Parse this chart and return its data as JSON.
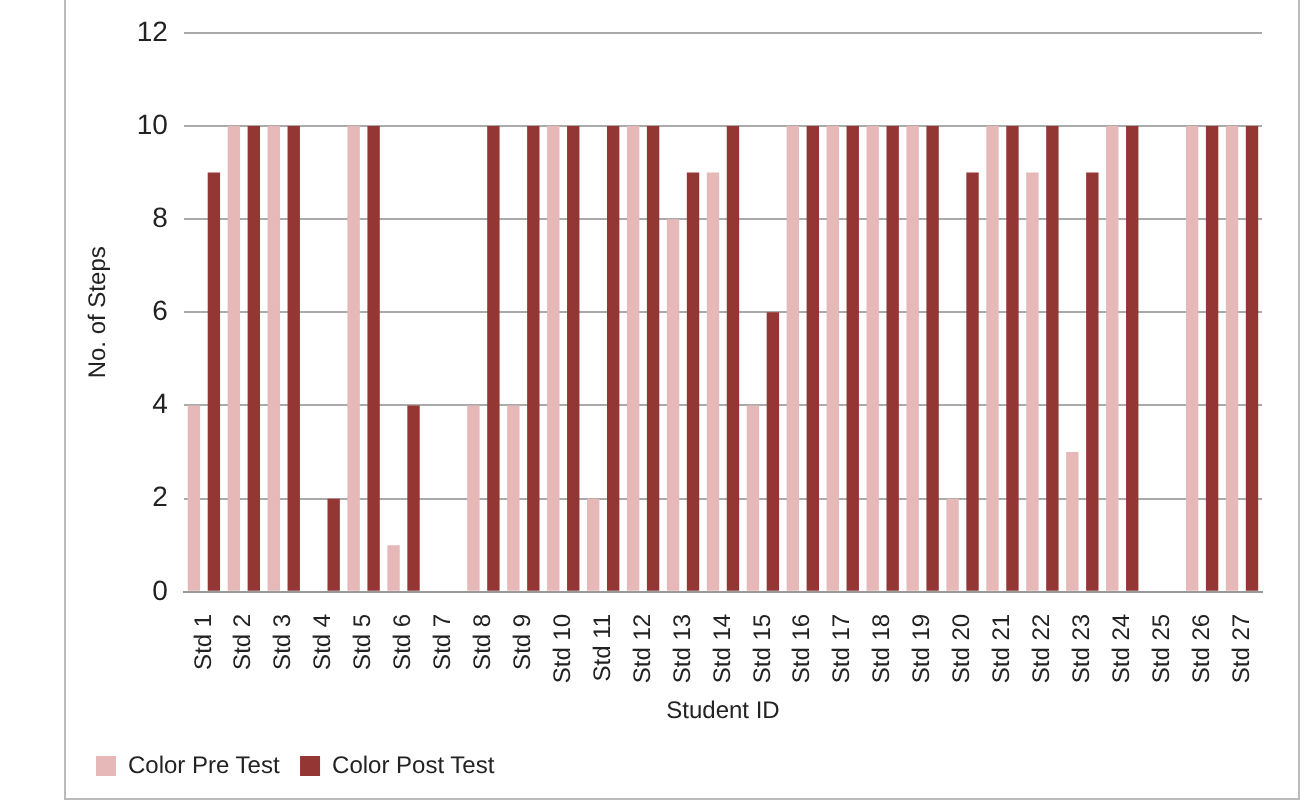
{
  "chart_data": {
    "type": "bar",
    "xlabel": "Student ID",
    "ylabel": "No. of Steps",
    "categories": [
      "Std 1",
      "Std 2",
      "Std 3",
      "Std 4",
      "Std 5",
      "Std 6",
      "Std 7",
      "Std 8",
      "Std 9",
      "Std 10",
      "Std 11",
      "Std 12",
      "Std 13",
      "Std 14",
      "Std 15",
      "Std 16",
      "Std 17",
      "Std 18",
      "Std 19",
      "Std 20",
      "Std 21",
      "Std 22",
      "Std 23",
      "Std 24",
      "Std 25",
      "Std 26",
      "Std 27"
    ],
    "series": [
      {
        "name": "Color Pre Test",
        "color": "#e6b8b7",
        "values": [
          4,
          10,
          10,
          0,
          10,
          1,
          0,
          4,
          4,
          10,
          2,
          10,
          8,
          9,
          4,
          10,
          10,
          10,
          10,
          2,
          10,
          9,
          3,
          10,
          0,
          10,
          10
        ]
      },
      {
        "name": "Color Post Test",
        "color": "#943634",
        "values": [
          9,
          10,
          10,
          2,
          10,
          4,
          0,
          10,
          10,
          10,
          10,
          10,
          9,
          10,
          6,
          10,
          10,
          10,
          10,
          9,
          10,
          10,
          9,
          10,
          0,
          10,
          10
        ]
      }
    ],
    "ylim": [
      0,
      12
    ],
    "yticks": [
      0,
      2,
      4,
      6,
      8,
      10,
      12
    ],
    "grid": "y",
    "legend": "bottom left"
  }
}
